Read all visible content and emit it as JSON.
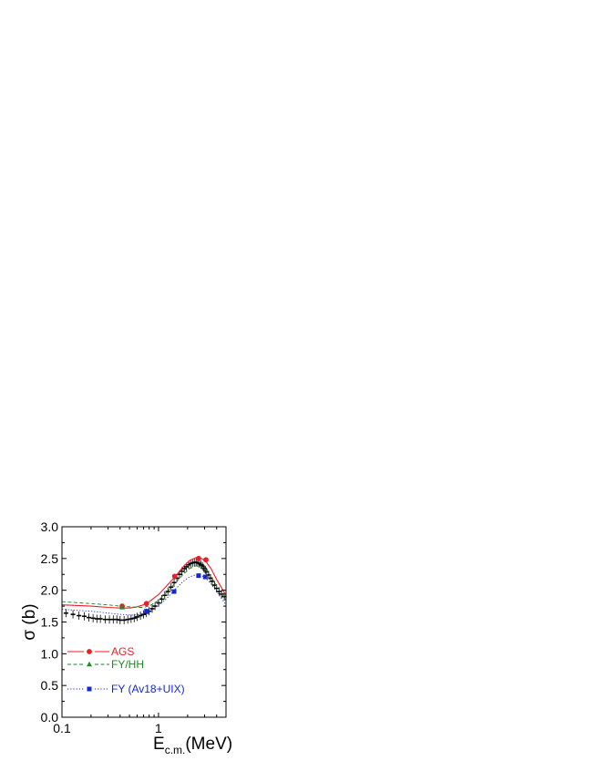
{
  "chart_data": {
    "type": "line",
    "xlabel": "E",
    "xlabel_subscript": "c.m.",
    "xlabel_unit": "(MeV)",
    "ylabel": "σ (b)",
    "xscale": "log",
    "xlim": [
      0.1,
      5.0
    ],
    "ylim": [
      0.0,
      3.0
    ],
    "x_ticks": [
      {
        "value": 0.1,
        "label": "0.1"
      },
      {
        "value": 1,
        "label": "1"
      }
    ],
    "y_ticks": [
      {
        "value": 0.0,
        "label": "0.0"
      },
      {
        "value": 0.5,
        "label": "0.5"
      },
      {
        "value": 1.0,
        "label": "1.0"
      },
      {
        "value": 1.5,
        "label": "1.5"
      },
      {
        "value": 2.0,
        "label": "2.0"
      },
      {
        "value": 2.5,
        "label": "2.5"
      },
      {
        "value": 3.0,
        "label": "3.0"
      }
    ],
    "grid": false,
    "legend_position": "bottom-left",
    "series": [
      {
        "name": "AGS",
        "color": "#e8202a",
        "dash": "solid",
        "marker": "circle",
        "x": [
          0.1,
          0.2,
          0.3,
          0.4,
          0.5,
          0.6,
          0.7,
          0.8,
          1.0,
          1.2,
          1.5,
          1.8,
          2.1,
          2.4,
          2.6,
          2.8,
          3.1,
          3.5,
          4.0,
          5.0
        ],
        "y": [
          1.77,
          1.75,
          1.73,
          1.72,
          1.72,
          1.74,
          1.77,
          1.82,
          1.93,
          2.06,
          2.22,
          2.37,
          2.47,
          2.51,
          2.52,
          2.5,
          2.45,
          2.34,
          2.17,
          1.92
        ],
        "markers": [
          [
            0.42,
            1.75
          ],
          [
            0.75,
            1.79
          ],
          [
            1.47,
            2.22
          ],
          [
            2.6,
            2.5
          ],
          [
            3.1,
            2.48
          ]
        ]
      },
      {
        "name": "FY/HH",
        "color": "#1e8a28",
        "dash": "dashed",
        "marker": "triangle",
        "x": [
          0.1,
          0.2,
          0.3,
          0.4,
          0.5,
          0.6,
          0.7,
          0.8,
          1.0,
          1.2,
          1.5,
          1.8,
          2.1,
          2.4,
          2.6,
          2.8,
          3.1,
          3.5,
          4.0,
          5.0
        ],
        "y": [
          1.82,
          1.79,
          1.77,
          1.75,
          1.74,
          1.73,
          1.73,
          1.75,
          1.84,
          1.96,
          2.12,
          2.25,
          2.34,
          2.38,
          2.39,
          2.37,
          2.32,
          2.22,
          2.07,
          1.84
        ],
        "markers": [
          [
            0.42,
            1.73
          ],
          [
            0.75,
            1.67
          ]
        ]
      },
      {
        "name": "FY (Av18+UIX)",
        "color": "#1428d6",
        "dash": "dotted",
        "marker": "square",
        "x": [
          0.1,
          0.2,
          0.3,
          0.4,
          0.5,
          0.6,
          0.7,
          0.8,
          1.0,
          1.2,
          1.5,
          1.8,
          2.1,
          2.4,
          2.6,
          2.8,
          3.1,
          3.5,
          4.0,
          5.0
        ],
        "y": [
          1.7,
          1.67,
          1.64,
          1.62,
          1.61,
          1.61,
          1.63,
          1.67,
          1.76,
          1.86,
          2.02,
          2.14,
          2.21,
          2.24,
          2.24,
          2.23,
          2.19,
          2.1,
          1.98,
          1.77
        ],
        "markers": [
          [
            0.75,
            1.67
          ],
          [
            1.45,
            1.98
          ],
          [
            2.6,
            2.23
          ],
          [
            3.05,
            2.21
          ]
        ]
      },
      {
        "name": "",
        "color": "#000000",
        "dash": "none",
        "marker": "errorbar-cross",
        "x": [
          0.11,
          0.13,
          0.15,
          0.17,
          0.19,
          0.21,
          0.23,
          0.25,
          0.28,
          0.31,
          0.34,
          0.37,
          0.4,
          0.44,
          0.48,
          0.52,
          0.56,
          0.6,
          0.65,
          0.7,
          0.75,
          0.8,
          0.86,
          0.92,
          1.0,
          1.08,
          1.16,
          1.25,
          1.35,
          1.45,
          1.55,
          1.65,
          1.75,
          1.85,
          1.95,
          2.05,
          2.15,
          2.25,
          2.35,
          2.45,
          2.55,
          2.65,
          2.75,
          2.85,
          2.95,
          3.05,
          3.15,
          3.3,
          3.45,
          3.6,
          3.8,
          4.0,
          4.25,
          4.5,
          4.8
        ],
        "y": [
          1.64,
          1.62,
          1.6,
          1.59,
          1.57,
          1.56,
          1.55,
          1.55,
          1.54,
          1.54,
          1.54,
          1.54,
          1.53,
          1.53,
          1.54,
          1.55,
          1.56,
          1.58,
          1.6,
          1.62,
          1.64,
          1.67,
          1.71,
          1.75,
          1.8,
          1.86,
          1.92,
          1.98,
          2.05,
          2.12,
          2.19,
          2.25,
          2.3,
          2.34,
          2.37,
          2.4,
          2.42,
          2.43,
          2.44,
          2.44,
          2.43,
          2.42,
          2.4,
          2.38,
          2.35,
          2.32,
          2.29,
          2.24,
          2.19,
          2.14,
          2.08,
          2.03,
          1.98,
          1.94,
          1.9
        ]
      }
    ]
  },
  "legend": [
    {
      "label": "AGS",
      "color": "#e8202a"
    },
    {
      "label": "FY/HH",
      "color": "#1e8a28"
    },
    {
      "label": "FY (Av18+UIX)",
      "color": "#1428d6"
    }
  ]
}
